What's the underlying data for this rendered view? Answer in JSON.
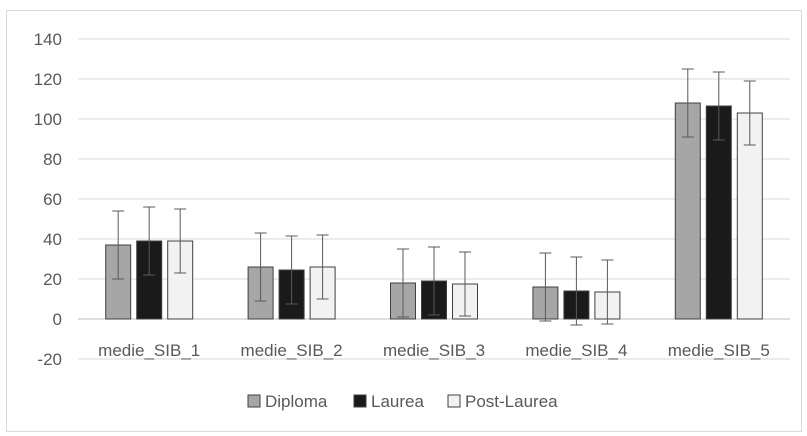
{
  "chart_data": {
    "type": "bar",
    "categories": [
      "medie_SIB_1",
      "medie_SIB_2",
      "medie_SIB_3",
      "medie_SIB_4",
      "medie_SIB_5"
    ],
    "series": [
      {
        "name": "Diploma",
        "color": "#a6a6a6",
        "values": [
          37,
          26,
          18,
          16,
          108
        ],
        "error": [
          17,
          17,
          17,
          17,
          17
        ]
      },
      {
        "name": "Laurea",
        "color": "#1a1a1a",
        "values": [
          39,
          24.5,
          19,
          14,
          106.5
        ],
        "error": [
          17,
          17,
          17,
          17,
          17
        ]
      },
      {
        "name": "Post-Laurea",
        "color": "#f2f2f2",
        "values": [
          39,
          26,
          17.5,
          13.5,
          103
        ],
        "error": [
          16,
          16,
          16,
          16,
          16
        ]
      }
    ],
    "ylim": [
      -20,
      140
    ],
    "yticks": [
      "140",
      "120",
      "100",
      "80",
      "60",
      "40",
      "20",
      "0",
      "-20"
    ],
    "ytick_values": [
      140,
      120,
      100,
      80,
      60,
      40,
      20,
      0,
      -20
    ],
    "grid": true,
    "legend_position": "bottom",
    "title": "",
    "xlabel": "",
    "ylabel": ""
  }
}
